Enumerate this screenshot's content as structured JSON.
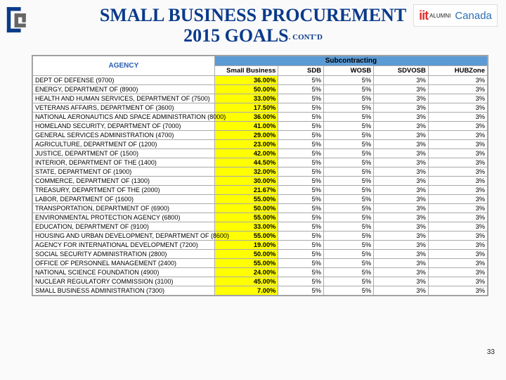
{
  "title_line1": "SMALL BUSINESS PROCUREMENT",
  "title_line2": "2015 GOALS",
  "title_contd": ". CONT'D",
  "logo_iit": "iit",
  "logo_alumni": "ALUMNI",
  "logo_canada": "Canada",
  "page_number": "33",
  "table": {
    "header_subcontracting": "Subcontracting",
    "header_agency": "AGENCY",
    "columns": [
      "Small Business",
      "SDB",
      "WOSB",
      "SDVOSB",
      "HUBZone"
    ],
    "col_widths": [
      "40%",
      "14%",
      "10%",
      "11%",
      "12%",
      "13%"
    ],
    "rows": [
      {
        "agency": "DEPT OF DEFENSE (9700)",
        "sb": "36.00%",
        "sdb": "5%",
        "wosb": "5%",
        "sdv": "3%",
        "hub": "3%"
      },
      {
        "agency": "ENERGY, DEPARTMENT OF (8900)",
        "sb": "50.00%",
        "sdb": "5%",
        "wosb": "5%",
        "sdv": "3%",
        "hub": "3%"
      },
      {
        "agency": "HEALTH AND HUMAN SERVICES, DEPARTMENT OF (7500)",
        "sb": "33.00%",
        "sdb": "5%",
        "wosb": "5%",
        "sdv": "3%",
        "hub": "3%"
      },
      {
        "agency": "VETERANS AFFAIRS, DEPARTMENT OF (3600)",
        "sb": "17.50%",
        "sdb": "5%",
        "wosb": "5%",
        "sdv": "3%",
        "hub": "3%"
      },
      {
        "agency": "NATIONAL AERONAUTICS AND SPACE ADMINISTRATION (8000)",
        "sb": "36.00%",
        "sdb": "5%",
        "wosb": "5%",
        "sdv": "3%",
        "hub": "3%"
      },
      {
        "agency": "HOMELAND SECURITY, DEPARTMENT OF (7000)",
        "sb": "41.00%",
        "sdb": "5%",
        "wosb": "5%",
        "sdv": "3%",
        "hub": "3%"
      },
      {
        "agency": "GENERAL SERVICES ADMINISTRATION (4700)",
        "sb": "29.00%",
        "sdb": "5%",
        "wosb": "5%",
        "sdv": "3%",
        "hub": "3%"
      },
      {
        "agency": "AGRICULTURE, DEPARTMENT OF (1200)",
        "sb": "23.00%",
        "sdb": "5%",
        "wosb": "5%",
        "sdv": "3%",
        "hub": "3%"
      },
      {
        "agency": "JUSTICE, DEPARTMENT OF (1500)",
        "sb": "42.00%",
        "sdb": "5%",
        "wosb": "5%",
        "sdv": "3%",
        "hub": "3%"
      },
      {
        "agency": "INTERIOR, DEPARTMENT OF THE (1400)",
        "sb": "44.50%",
        "sdb": "5%",
        "wosb": "5%",
        "sdv": "3%",
        "hub": "3%"
      },
      {
        "agency": "STATE, DEPARTMENT OF (1900)",
        "sb": "32.00%",
        "sdb": "5%",
        "wosb": "5%",
        "sdv": "3%",
        "hub": "3%"
      },
      {
        "agency": "COMMERCE, DEPARTMENT OF (1300)",
        "sb": "30.00%",
        "sdb": "5%",
        "wosb": "5%",
        "sdv": "3%",
        "hub": "3%"
      },
      {
        "agency": "TREASURY, DEPARTMENT OF THE (2000)",
        "sb": "21.67%",
        "sdb": "5%",
        "wosb": "5%",
        "sdv": "3%",
        "hub": "3%"
      },
      {
        "agency": "LABOR, DEPARTMENT OF (1600)",
        "sb": "55.00%",
        "sdb": "5%",
        "wosb": "5%",
        "sdv": "3%",
        "hub": "3%"
      },
      {
        "agency": "TRANSPORTATION, DEPARTMENT OF (6900)",
        "sb": "50.00%",
        "sdb": "5%",
        "wosb": "5%",
        "sdv": "3%",
        "hub": "3%"
      },
      {
        "agency": "ENVIRONMENTAL PROTECTION AGENCY (6800)",
        "sb": "55.00%",
        "sdb": "5%",
        "wosb": "5%",
        "sdv": "3%",
        "hub": "3%"
      },
      {
        "agency": "EDUCATION, DEPARTMENT OF (9100)",
        "sb": "33.00%",
        "sdb": "5%",
        "wosb": "5%",
        "sdv": "3%",
        "hub": "3%"
      },
      {
        "agency": "HOUSING AND URBAN DEVELOPMENT, DEPARTMENT OF (8600)",
        "sb": "55.00%",
        "sdb": "5%",
        "wosb": "5%",
        "sdv": "3%",
        "hub": "3%"
      },
      {
        "agency": "AGENCY FOR INTERNATIONAL DEVELOPMENT (7200)",
        "sb": "19.00%",
        "sdb": "5%",
        "wosb": "5%",
        "sdv": "3%",
        "hub": "3%"
      },
      {
        "agency": "SOCIAL SECURITY ADMINISTRATION (2800)",
        "sb": "50.00%",
        "sdb": "5%",
        "wosb": "5%",
        "sdv": "3%",
        "hub": "3%"
      },
      {
        "agency": "OFFICE OF PERSONNEL MANAGEMENT (2400)",
        "sb": "55.00%",
        "sdb": "5%",
        "wosb": "5%",
        "sdv": "3%",
        "hub": "3%"
      },
      {
        "agency": "NATIONAL SCIENCE FOUNDATION (4900)",
        "sb": "24.00%",
        "sdb": "5%",
        "wosb": "5%",
        "sdv": "3%",
        "hub": "3%"
      },
      {
        "agency": "NUCLEAR REGULATORY COMMISSION (3100)",
        "sb": "45.00%",
        "sdb": "5%",
        "wosb": "5%",
        "sdv": "3%",
        "hub": "3%"
      },
      {
        "agency": "SMALL BUSINESS ADMINISTRATION (7300)",
        "sb": "7.00%",
        "sdb": "5%",
        "wosb": "5%",
        "sdv": "3%",
        "hub": "3%"
      }
    ]
  }
}
